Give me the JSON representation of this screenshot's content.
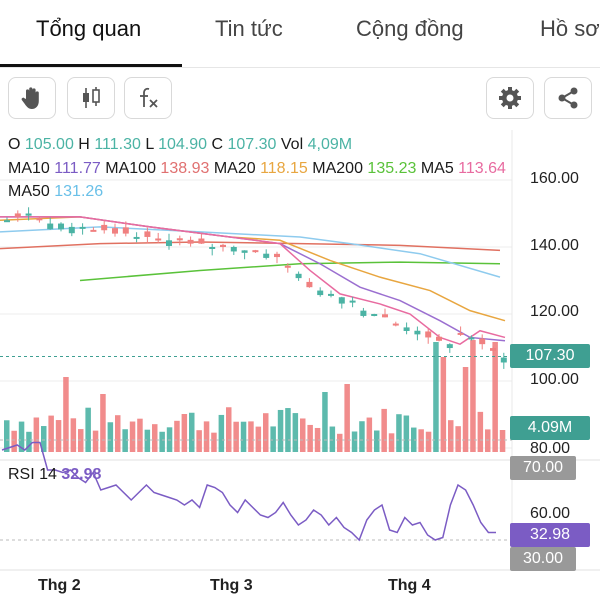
{
  "tabs": [
    {
      "label": "Tổng quan",
      "active": true
    },
    {
      "label": "Tin tức",
      "active": false
    },
    {
      "label": "Cộng đồng",
      "active": false
    },
    {
      "label": "Hồ sơ",
      "active": false
    }
  ],
  "toolbar": {
    "left_icons": [
      "hand-icon",
      "candlestick-icon",
      "function-icon"
    ],
    "right_icons": [
      "gear-icon",
      "share-icon"
    ]
  },
  "ohlc": {
    "o_label": "O",
    "o": "105.00",
    "h_label": "H",
    "h": "111.30",
    "l_label": "L",
    "l": "104.90",
    "c_label": "C",
    "c": "107.30",
    "vol_label": "Vol",
    "vol": "4,09M"
  },
  "ma": {
    "ma10_label": "MA10",
    "ma10": "111.77",
    "ma100_label": "MA100",
    "ma100": "138.93",
    "ma20_label": "MA20",
    "ma20": "118.15",
    "ma200_label": "MA200",
    "ma200": "135.23",
    "ma5_label": "MA5",
    "ma5": "113.64",
    "ma50_label": "MA50",
    "ma50": "131.26"
  },
  "axis": {
    "price_ticks": [
      "160.00",
      "140.00",
      "120.00",
      "100.00",
      "80.00"
    ],
    "last_price": "107.30",
    "last_volume": "4.09M",
    "rsi_ticks": [
      "70.00",
      "60.00",
      "30.00"
    ],
    "last_rsi": "32.98"
  },
  "rsi": {
    "label": "RSI 14",
    "value": "32.98"
  },
  "months": [
    "Thg 2",
    "Thg 3",
    "Thg 4"
  ],
  "colors": {
    "up": "#4bb3a4",
    "down": "#f08080",
    "ma5": "#e86ba0",
    "ma10": "#9b6fd0",
    "ma20": "#e8a640",
    "ma50": "#8ecbee",
    "ma100": "#e07060",
    "ma200": "#5ac23a",
    "rsi": "#7b5cc4"
  },
  "chart_data": {
    "type": "candlestick",
    "price_axis": [
      80,
      160
    ],
    "volume_unit": "M",
    "ma_lines": {
      "ma100": [
        [
          0,
          139.5
        ],
        [
          100,
          141
        ],
        [
          200,
          141.5
        ],
        [
          300,
          141
        ],
        [
          400,
          140.5
        ],
        [
          500,
          139
        ]
      ],
      "ma200": [
        [
          80,
          130
        ],
        [
          200,
          133
        ],
        [
          300,
          135
        ],
        [
          400,
          135.5
        ],
        [
          500,
          135
        ]
      ],
      "ma50": [
        [
          0,
          144.5
        ],
        [
          100,
          146
        ],
        [
          200,
          144.5
        ],
        [
          300,
          143
        ],
        [
          350,
          141
        ],
        [
          420,
          138
        ],
        [
          500,
          131
        ]
      ],
      "ma20": [
        [
          0,
          148
        ],
        [
          80,
          149
        ],
        [
          150,
          146
        ],
        [
          230,
          143
        ],
        [
          280,
          142
        ],
        [
          330,
          136
        ],
        [
          380,
          131
        ],
        [
          430,
          127
        ],
        [
          470,
          121
        ],
        [
          505,
          118
        ]
      ],
      "ma10": [
        [
          0,
          149
        ],
        [
          80,
          149
        ],
        [
          150,
          146
        ],
        [
          230,
          143
        ],
        [
          280,
          141
        ],
        [
          320,
          135
        ],
        [
          360,
          128
        ],
        [
          400,
          124
        ],
        [
          440,
          118
        ],
        [
          470,
          113
        ],
        [
          505,
          112
        ]
      ],
      "ma5": [
        [
          0,
          149
        ],
        [
          80,
          149
        ],
        [
          150,
          146
        ],
        [
          230,
          143
        ],
        [
          280,
          141
        ],
        [
          310,
          133
        ],
        [
          340,
          126
        ],
        [
          380,
          123
        ],
        [
          410,
          120
        ],
        [
          440,
          113
        ],
        [
          460,
          111
        ],
        [
          480,
          115
        ],
        [
          505,
          113
        ]
      ]
    },
    "rsi_axis": [
      20,
      80
    ]
  }
}
